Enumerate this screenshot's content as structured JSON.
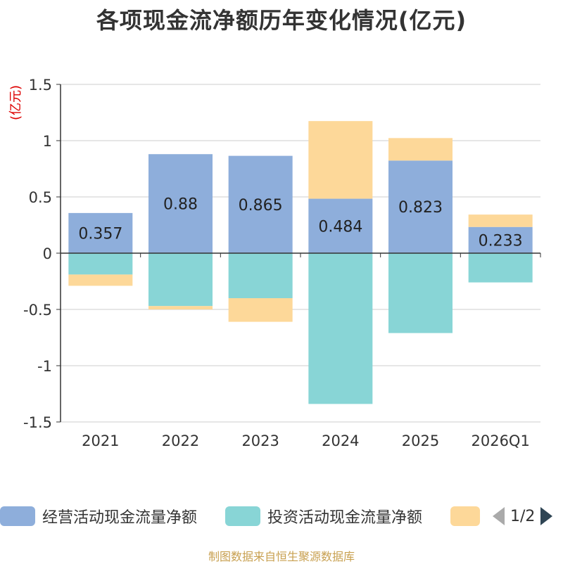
{
  "chart_data": {
    "type": "bar",
    "stacked": true,
    "title": "各项现金流净额历年变化情况(亿元)",
    "ylabel": "(亿元)",
    "ylim": [
      -1.5,
      1.5
    ],
    "yticks": [
      1.5,
      1,
      0.5,
      0,
      -0.5,
      -1,
      -1.5
    ],
    "ytick_labels": [
      "1.5",
      "1",
      "0.5",
      "0",
      "-0.5",
      "-1",
      "-1.5"
    ],
    "categories": [
      "2021",
      "2022",
      "2023",
      "2024",
      "2025",
      "2026Q1"
    ],
    "series": [
      {
        "name": "经营活动现金流量净额",
        "color": "#8eaedb",
        "values": [
          0.357,
          0.88,
          0.865,
          0.484,
          0.823,
          0.233
        ],
        "labels": [
          "0.357",
          "0.88",
          "0.865",
          "0.484",
          "0.823",
          "0.233"
        ]
      },
      {
        "name": "投资活动现金流量净额",
        "color": "#88d5d6",
        "values": [
          -0.19,
          -0.47,
          -0.4,
          -1.34,
          -0.71,
          -0.26
        ]
      },
      {
        "name": "",
        "color": "#fdd899",
        "values": [
          -0.1,
          -0.03,
          -0.21,
          0.69,
          0.2,
          0.11
        ]
      }
    ]
  },
  "legend": {
    "items": [
      {
        "label": "经营活动现金流量净额",
        "color": "#8eaedb"
      },
      {
        "label": "投资活动现金流量净额",
        "color": "#88d5d6"
      },
      {
        "label": "",
        "color": "#fdd899"
      }
    ],
    "page": "1/2"
  },
  "source": "制图数据来自恒生聚源数据库"
}
